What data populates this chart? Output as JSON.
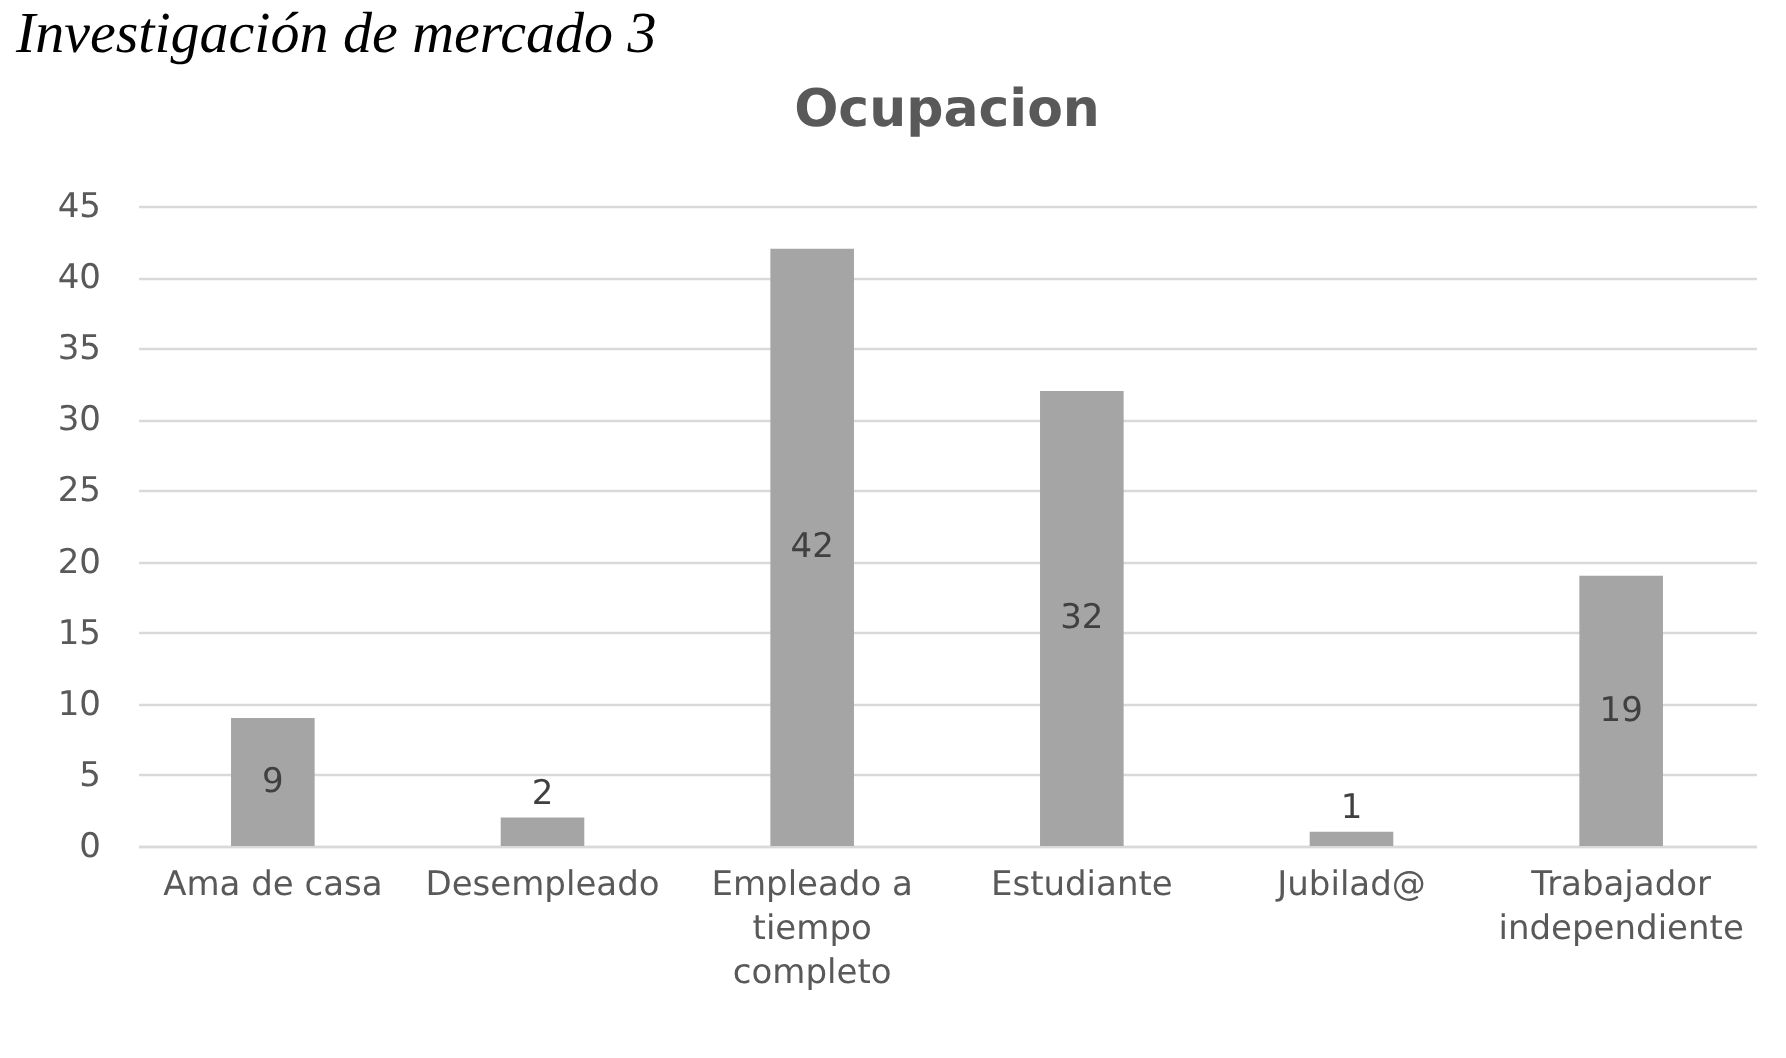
{
  "chart_data": {
    "type": "bar",
    "title": "Ocupacion",
    "categories": [
      "Ama de casa",
      "Desempleado",
      "Empleado a tiempo completo",
      "Estudiante",
      "Jubilad@",
      "Trabajador independiente"
    ],
    "values": [
      9,
      2,
      42,
      32,
      1,
      19
    ],
    "color": "#a5a5a5",
    "ylim": [
      0,
      45
    ],
    "yticks": [
      0,
      5,
      10,
      15,
      20,
      25,
      30,
      35,
      40,
      45
    ],
    "grid": "y",
    "data_labels": true,
    "annotations": [
      "Investigación de mercado 3"
    ]
  }
}
